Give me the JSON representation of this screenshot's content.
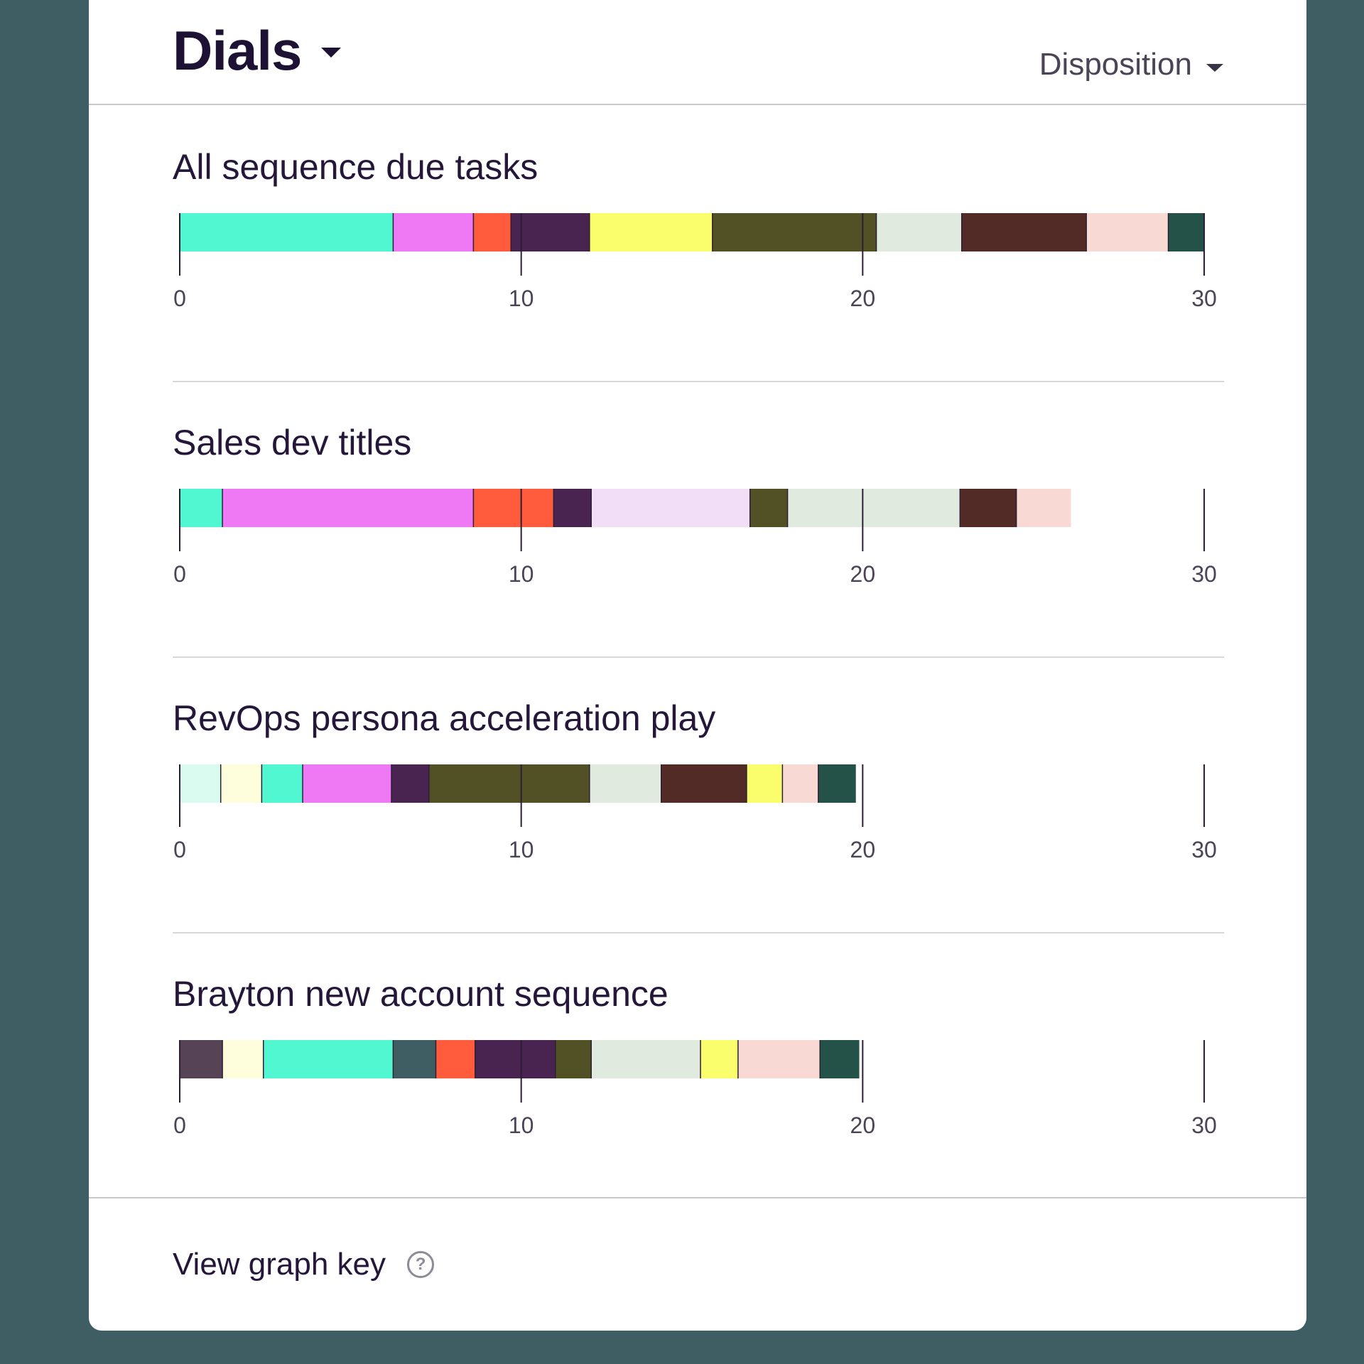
{
  "header": {
    "title": "Dials",
    "group_by": "Disposition"
  },
  "palette": {
    "aqua": "#50f7d0",
    "pink": "#ef78f4",
    "orange": "#ff5b3c",
    "plum": "#4a2451",
    "yellow": "#fafe6c",
    "olive": "#525126",
    "sage": "#e1eadf",
    "brown": "#522b26",
    "blush": "#f9d9d4",
    "forest": "#245248",
    "lavender": "#f3def7",
    "mint": "#d9fbf0",
    "cream": "#fefedc",
    "mauve": "#574356",
    "slate": "#3f5e63"
  },
  "chart_data": [
    {
      "type": "bar",
      "title": "All sequence due tasks",
      "xlim": [
        0,
        30
      ],
      "ticks": [
        "0",
        "10",
        "20",
        "30"
      ],
      "segments": [
        {
          "color": "#50f7d0",
          "value": 6.25
        },
        {
          "color": "#ef78f4",
          "value": 2.35
        },
        {
          "color": "#ff5b3c",
          "value": 1.1
        },
        {
          "color": "#4a2451",
          "value": 2.3
        },
        {
          "color": "#fafe6c",
          "value": 3.6
        },
        {
          "color": "#525126",
          "value": 4.8
        },
        {
          "color": "#e1eadf",
          "value": 2.5
        },
        {
          "color": "#522b26",
          "value": 3.65
        },
        {
          "color": "#f9d9d4",
          "value": 2.4
        },
        {
          "color": "#245248",
          "value": 1.05
        }
      ]
    },
    {
      "type": "bar",
      "title": "Sales dev titles",
      "xlim": [
        0,
        30
      ],
      "ticks": [
        "0",
        "10",
        "20",
        "30"
      ],
      "segments": [
        {
          "color": "#50f7d0",
          "value": 1.25
        },
        {
          "color": "#ef78f4",
          "value": 7.35
        },
        {
          "color": "#ff5b3c",
          "value": 2.35
        },
        {
          "color": "#4a2451",
          "value": 1.1
        },
        {
          "color": "#f3def7",
          "value": 4.65
        },
        {
          "color": "#525126",
          "value": 1.1
        },
        {
          "color": "#e1eadf",
          "value": 5.05
        },
        {
          "color": "#522b26",
          "value": 1.65
        },
        {
          "color": "#f9d9d4",
          "value": 1.6
        }
      ]
    },
    {
      "type": "bar",
      "title": "RevOps persona acceleration play",
      "xlim": [
        0,
        30
      ],
      "ticks": [
        "0",
        "10",
        "20",
        "30"
      ],
      "segments": [
        {
          "color": "#d9fbf0",
          "value": 1.2
        },
        {
          "color": "#fefedc",
          "value": 1.2
        },
        {
          "color": "#50f7d0",
          "value": 1.2
        },
        {
          "color": "#ef78f4",
          "value": 2.6
        },
        {
          "color": "#4a2451",
          "value": 1.1
        },
        {
          "color": "#525126",
          "value": 4.7
        },
        {
          "color": "#e1eadf",
          "value": 2.1
        },
        {
          "color": "#522b26",
          "value": 2.5
        },
        {
          "color": "#fafe6c",
          "value": 1.05
        },
        {
          "color": "#f9d9d4",
          "value": 1.05
        },
        {
          "color": "#245248",
          "value": 1.1
        }
      ]
    },
    {
      "type": "bar",
      "title": "Brayton new account sequence",
      "xlim": [
        0,
        30
      ],
      "ticks": [
        "0",
        "10",
        "20",
        "30"
      ],
      "segments": [
        {
          "color": "#574356",
          "value": 1.25
        },
        {
          "color": "#fefedc",
          "value": 1.2
        },
        {
          "color": "#50f7d0",
          "value": 3.8
        },
        {
          "color": "#3f5e63",
          "value": 1.25
        },
        {
          "color": "#ff5b3c",
          "value": 1.15
        },
        {
          "color": "#4a2451",
          "value": 2.35
        },
        {
          "color": "#525126",
          "value": 1.05
        },
        {
          "color": "#e1eadf",
          "value": 3.2
        },
        {
          "color": "#fafe6c",
          "value": 1.1
        },
        {
          "color": "#f9d9d4",
          "value": 2.4
        },
        {
          "color": "#245248",
          "value": 1.15
        }
      ]
    }
  ],
  "footer": {
    "key_label": "View graph key",
    "help_icon": "question-circle-icon"
  }
}
